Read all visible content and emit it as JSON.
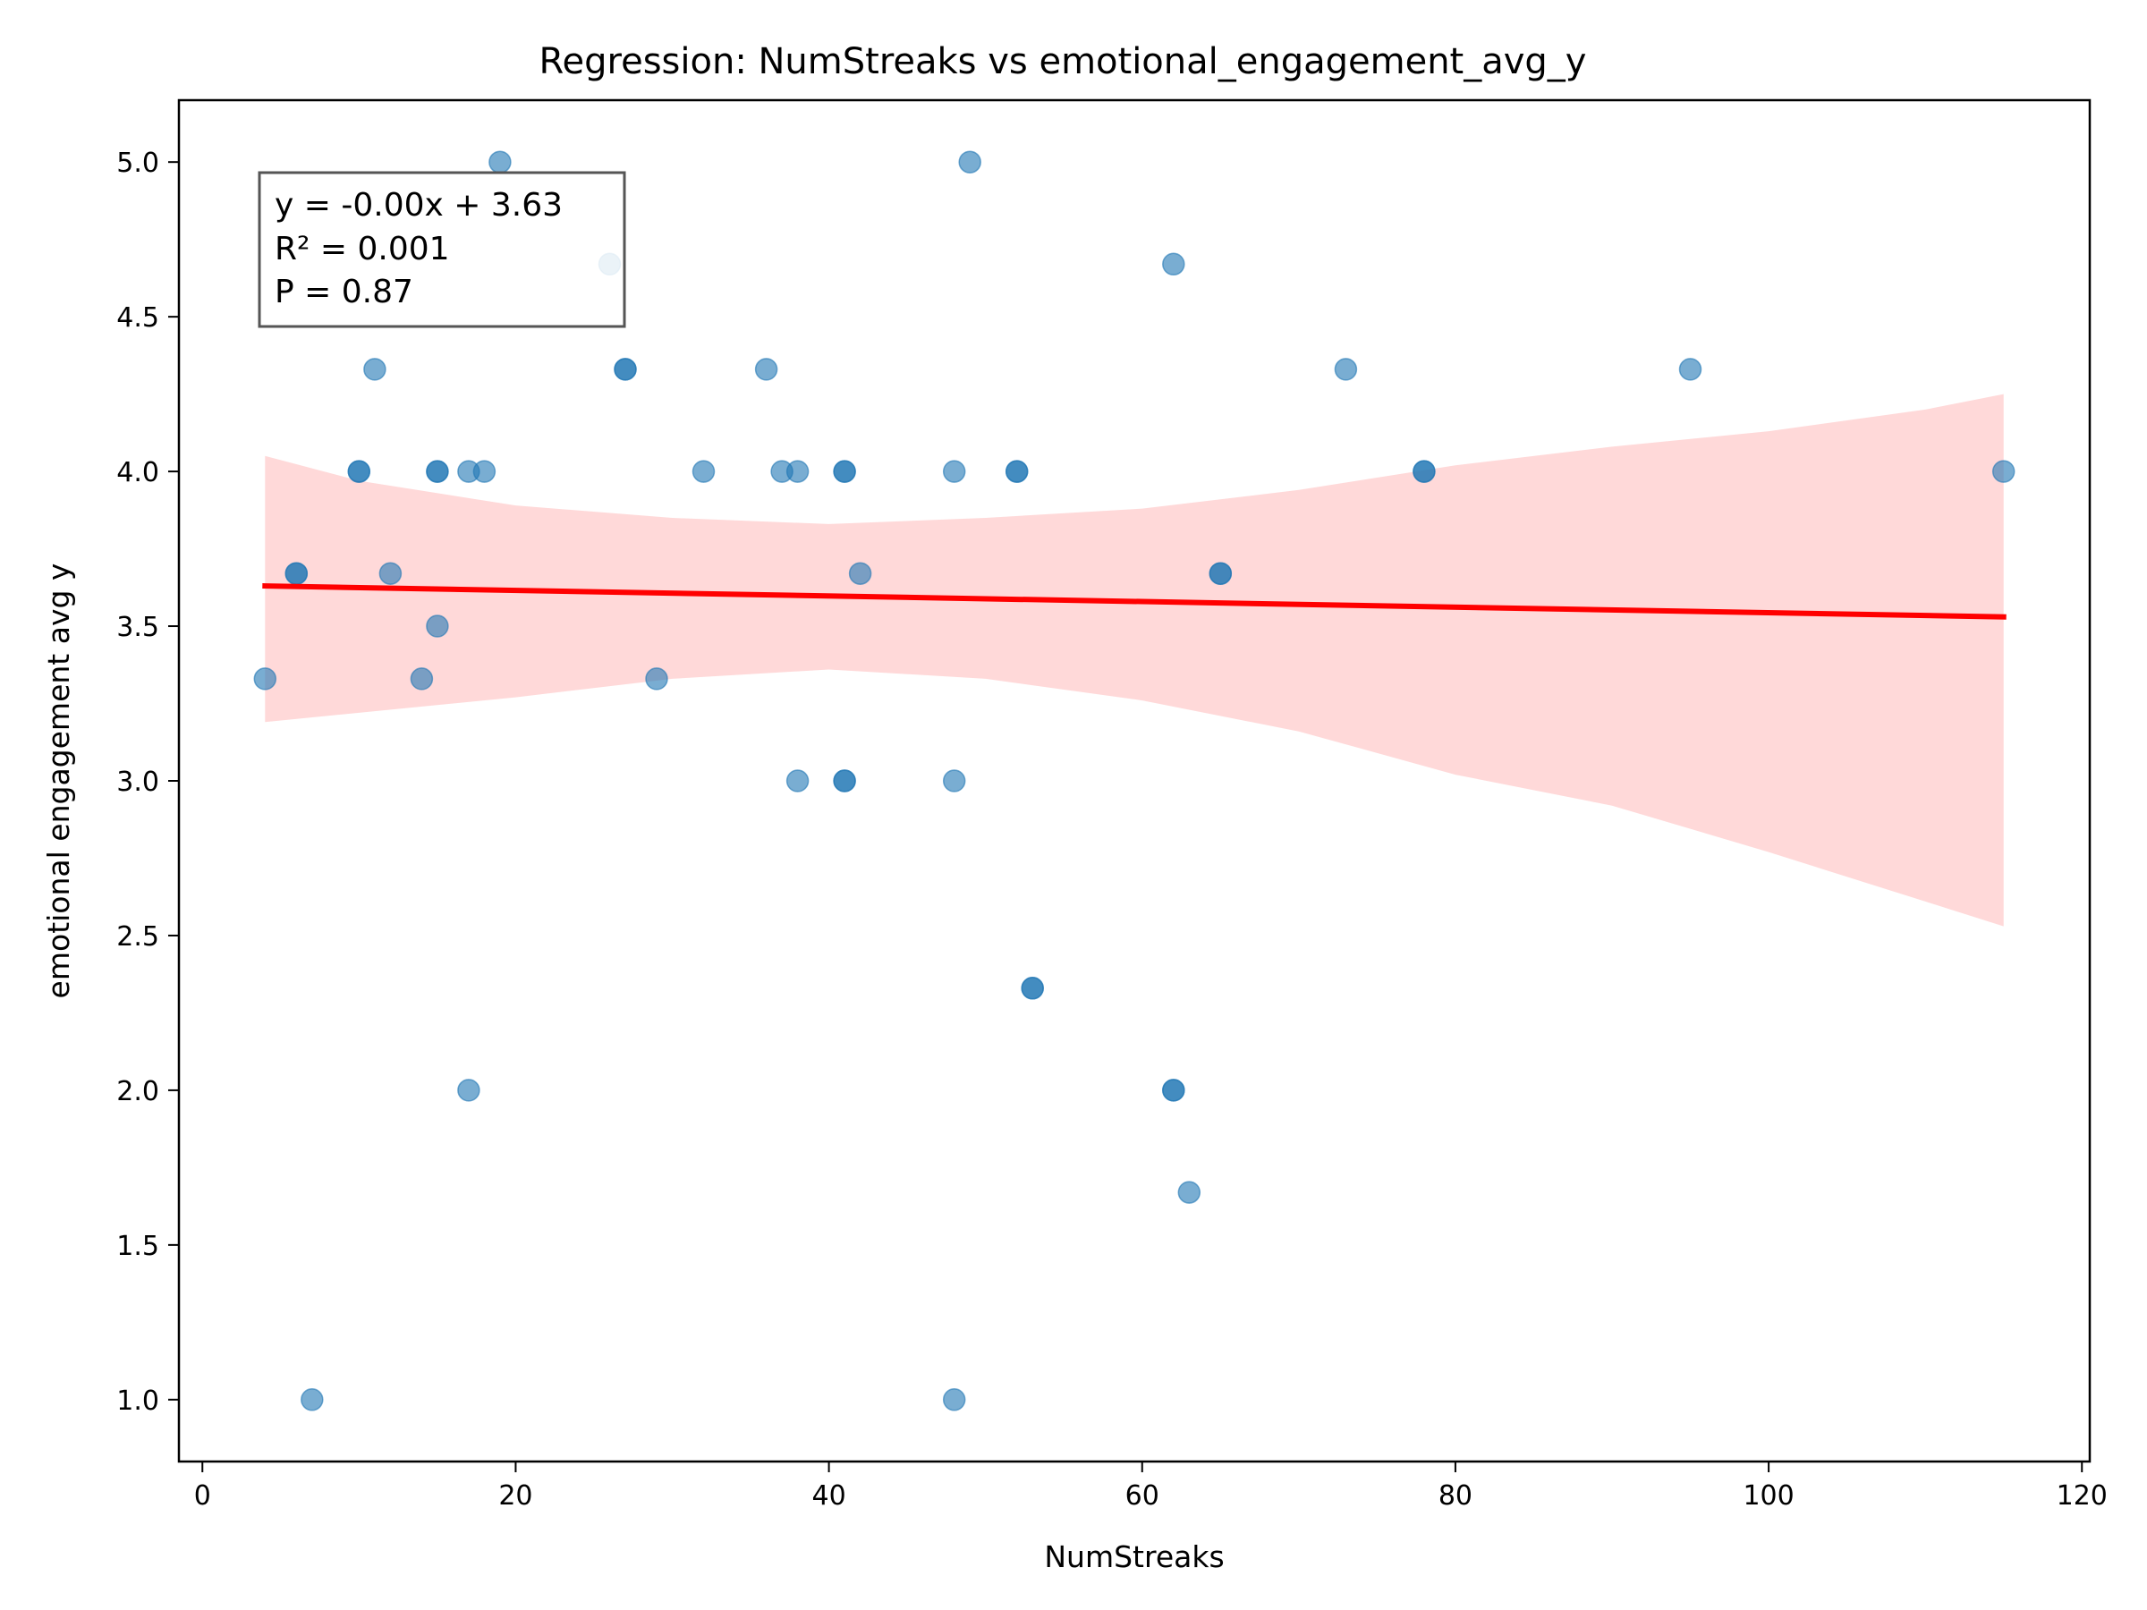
{
  "chart_data": {
    "type": "scatter",
    "title": "Regression: NumStreaks vs emotional_engagement_avg_y",
    "xlabel": "NumStreaks",
    "ylabel": "emotional engagement avg y",
    "xlim": [
      -1.5,
      120.5
    ],
    "ylim": [
      0.8,
      5.2
    ],
    "xticks": [
      0,
      20,
      40,
      60,
      80,
      100,
      120
    ],
    "yticks": [
      1.0,
      1.5,
      2.0,
      2.5,
      3.0,
      3.5,
      4.0,
      4.5,
      5.0
    ],
    "xtick_labels": [
      "0",
      "20",
      "40",
      "60",
      "80",
      "100",
      "120"
    ],
    "ytick_labels": [
      "1.0",
      "1.5",
      "2.0",
      "2.5",
      "3.0",
      "3.5",
      "4.0",
      "4.5",
      "5.0"
    ],
    "grid": false,
    "point_color": "#1f77b4",
    "line_color": "#ff0000",
    "band_color": "#ffcccc",
    "points": [
      {
        "x": 4,
        "y": 3.33
      },
      {
        "x": 6,
        "y": 3.67
      },
      {
        "x": 6,
        "y": 3.67
      },
      {
        "x": 7,
        "y": 1.0
      },
      {
        "x": 10,
        "y": 4.0
      },
      {
        "x": 10,
        "y": 4.0
      },
      {
        "x": 11,
        "y": 4.33
      },
      {
        "x": 12,
        "y": 3.67
      },
      {
        "x": 14,
        "y": 3.33
      },
      {
        "x": 15,
        "y": 4.0
      },
      {
        "x": 15,
        "y": 4.0
      },
      {
        "x": 15,
        "y": 3.5
      },
      {
        "x": 17,
        "y": 4.0
      },
      {
        "x": 17,
        "y": 2.0
      },
      {
        "x": 18,
        "y": 4.0
      },
      {
        "x": 19,
        "y": 5.0
      },
      {
        "x": 26,
        "y": 4.67
      },
      {
        "x": 27,
        "y": 4.33
      },
      {
        "x": 27,
        "y": 4.33
      },
      {
        "x": 29,
        "y": 3.33
      },
      {
        "x": 32,
        "y": 4.0
      },
      {
        "x": 36,
        "y": 4.33
      },
      {
        "x": 37,
        "y": 4.0
      },
      {
        "x": 38,
        "y": 4.0
      },
      {
        "x": 38,
        "y": 3.0
      },
      {
        "x": 41,
        "y": 4.0
      },
      {
        "x": 41,
        "y": 4.0
      },
      {
        "x": 41,
        "y": 3.0
      },
      {
        "x": 41,
        "y": 3.0
      },
      {
        "x": 42,
        "y": 3.67
      },
      {
        "x": 48,
        "y": 4.0
      },
      {
        "x": 48,
        "y": 3.0
      },
      {
        "x": 48,
        "y": 1.0
      },
      {
        "x": 49,
        "y": 5.0
      },
      {
        "x": 52,
        "y": 4.0
      },
      {
        "x": 52,
        "y": 4.0
      },
      {
        "x": 53,
        "y": 2.33
      },
      {
        "x": 53,
        "y": 2.33
      },
      {
        "x": 62,
        "y": 4.67
      },
      {
        "x": 62,
        "y": 2.0
      },
      {
        "x": 62,
        "y": 2.0
      },
      {
        "x": 63,
        "y": 1.67
      },
      {
        "x": 65,
        "y": 3.67
      },
      {
        "x": 65,
        "y": 3.67
      },
      {
        "x": 73,
        "y": 4.33
      },
      {
        "x": 78,
        "y": 4.0
      },
      {
        "x": 78,
        "y": 4.0
      },
      {
        "x": 95,
        "y": 4.33
      },
      {
        "x": 115,
        "y": 4.0
      }
    ],
    "regression": {
      "x": [
        4,
        115
      ],
      "y": [
        3.63,
        3.53
      ]
    },
    "confidence_band": {
      "x": [
        4,
        10,
        20,
        30,
        40,
        50,
        60,
        70,
        80,
        90,
        100,
        110,
        115
      ],
      "upper": [
        4.05,
        3.97,
        3.89,
        3.85,
        3.83,
        3.85,
        3.88,
        3.94,
        4.02,
        4.08,
        4.13,
        4.2,
        4.25
      ],
      "lower": [
        3.19,
        3.22,
        3.27,
        3.33,
        3.36,
        3.33,
        3.26,
        3.16,
        3.02,
        2.92,
        2.77,
        2.61,
        2.53
      ]
    },
    "stats_box": {
      "lines": [
        "y = -0.00x + 3.63",
        "R² = 0.001",
        "P = 0.87"
      ],
      "placement": "top-left"
    }
  }
}
